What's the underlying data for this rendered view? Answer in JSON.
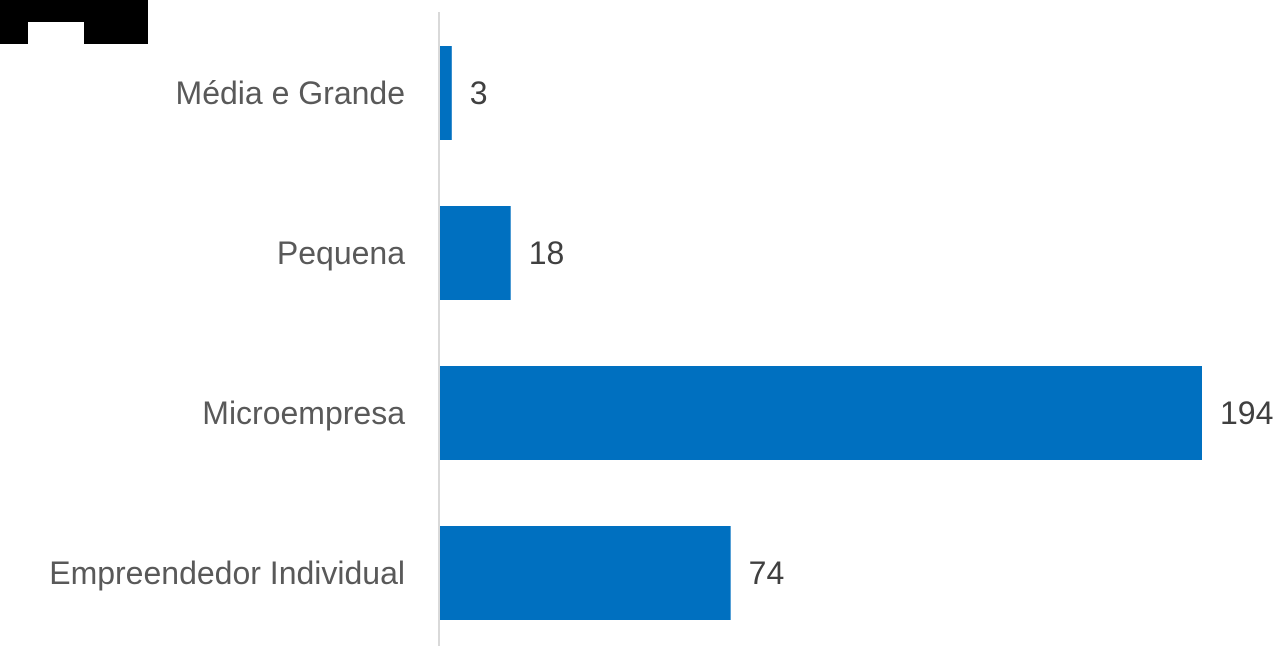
{
  "chart_data": {
    "type": "bar",
    "orientation": "horizontal",
    "categories": [
      "Média e Grande",
      "Pequena",
      "Microempresa",
      "Empreendedor Individual"
    ],
    "values": [
      3,
      18,
      194,
      74
    ],
    "title": "",
    "xlabel": "",
    "ylabel": "",
    "xlim": [
      0,
      194
    ],
    "grid": false,
    "legend": "none",
    "bar_color": "#0070C0",
    "data_labels": true
  },
  "colors": {
    "bar": "#0070C0",
    "axis": "#D9D9D9",
    "category_text": "#595959",
    "value_text": "#404040"
  },
  "logo": {
    "icon": "partial-logo-icon"
  }
}
